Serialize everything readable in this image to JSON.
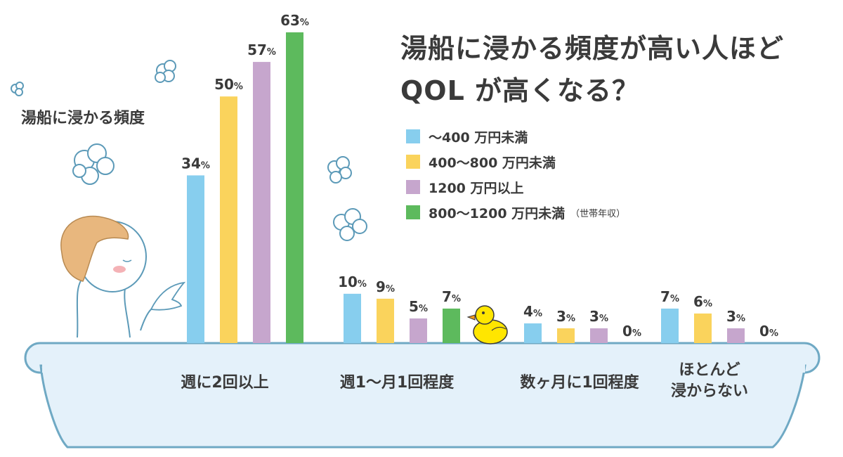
{
  "title_line1": "湯船に浸かる頻度が高い人ほど",
  "title_line2": "QOL が高くなる？",
  "subtitle": "湯船に浸かる頻度",
  "legend_note": "（世帯年収）",
  "colors": {
    "blue": "#87CEEE",
    "yellow": "#FAD35C",
    "purple": "#C6A6CD",
    "green": "#5DBA5D",
    "tub_fill": "#E4F1FA",
    "tub_stroke": "#6FA9C4"
  },
  "chart_data": {
    "type": "bar",
    "categories": [
      "週に2回以上",
      "週1〜月1回程度",
      "数ヶ月に1回程度",
      "ほとんど浸からない"
    ],
    "category_lines": [
      [
        "週に2回以上"
      ],
      [
        "週1〜月1回程度"
      ],
      [
        "数ヶ月に1回程度"
      ],
      [
        "ほとんど",
        "浸からない"
      ]
    ],
    "value_suffix": "%",
    "series": [
      {
        "name": "〜400 万円未満",
        "color": "#87CEEE",
        "values": [
          34,
          10,
          4,
          7
        ]
      },
      {
        "name": "400〜800 万円未満",
        "color": "#FAD35C",
        "values": [
          50,
          9,
          3,
          6
        ]
      },
      {
        "name": "1200 万円以上",
        "color": "#C6A6CD",
        "values": [
          57,
          5,
          3,
          3
        ]
      },
      {
        "name": "800〜1200 万円未満",
        "color": "#5DBA5D",
        "values": [
          63,
          7,
          0,
          0
        ]
      }
    ],
    "ylim": [
      0,
      63
    ]
  }
}
